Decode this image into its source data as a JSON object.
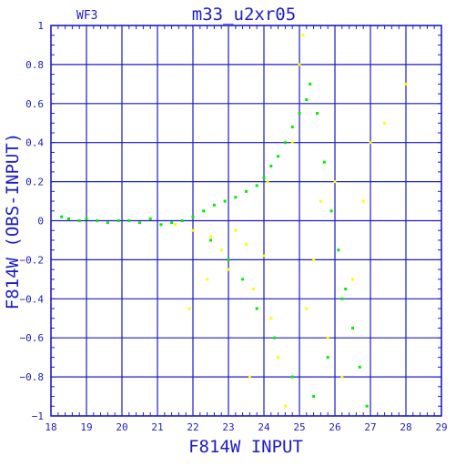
{
  "chart_data": {
    "type": "scatter",
    "title": "m33_u2xr05",
    "corner_label": "WF3",
    "xlabel": "F814W INPUT",
    "ylabel": "F814W (OBS-INPUT)",
    "xlim": [
      18,
      29
    ],
    "ylim": [
      -1,
      1
    ],
    "x_ticks": [
      18,
      19,
      20,
      21,
      22,
      23,
      24,
      25,
      26,
      27,
      28,
      29
    ],
    "y_ticks": [
      -1,
      -0.8,
      -0.6,
      -0.4,
      -0.2,
      0,
      0.2,
      0.4,
      0.6,
      0.8,
      1
    ],
    "y_tick_labels": [
      "−1",
      "−0.8",
      "−0.6",
      "−0.4",
      "−0.2",
      "0",
      "0.2",
      "0.4",
      "0.6",
      "0.8",
      "1"
    ],
    "grid": true,
    "series": [
      {
        "color": "#00ee00",
        "marker": "dot",
        "points": [
          [
            18.3,
            0.02
          ],
          [
            18.5,
            0.01
          ],
          [
            18.8,
            0.0
          ],
          [
            19.0,
            0.01
          ],
          [
            19.3,
            0.0
          ],
          [
            19.6,
            -0.01
          ],
          [
            19.9,
            0.0
          ],
          [
            20.2,
            0.0
          ],
          [
            20.5,
            -0.01
          ],
          [
            20.8,
            0.01
          ],
          [
            21.1,
            -0.02
          ],
          [
            21.4,
            -0.01
          ],
          [
            21.7,
            0.0
          ],
          [
            22.0,
            0.02
          ],
          [
            22.3,
            0.05
          ],
          [
            22.6,
            0.08
          ],
          [
            22.9,
            0.1
          ],
          [
            23.2,
            0.12
          ],
          [
            23.5,
            0.15
          ],
          [
            23.8,
            0.18
          ],
          [
            24.0,
            0.22
          ],
          [
            24.2,
            0.28
          ],
          [
            24.4,
            0.33
          ],
          [
            24.6,
            0.4
          ],
          [
            24.8,
            0.48
          ],
          [
            25.0,
            0.55
          ],
          [
            25.2,
            0.62
          ],
          [
            25.3,
            0.7
          ],
          [
            25.5,
            0.55
          ],
          [
            25.7,
            0.3
          ],
          [
            25.9,
            0.05
          ],
          [
            26.1,
            -0.15
          ],
          [
            26.3,
            -0.35
          ],
          [
            26.5,
            -0.55
          ],
          [
            26.7,
            -0.75
          ],
          [
            26.9,
            -0.95
          ],
          [
            22.5,
            -0.1
          ],
          [
            23.0,
            -0.2
          ],
          [
            23.4,
            -0.3
          ],
          [
            23.8,
            -0.45
          ],
          [
            24.3,
            -0.6
          ],
          [
            24.8,
            -0.8
          ],
          [
            25.4,
            -0.9
          ],
          [
            25.8,
            -0.7
          ],
          [
            26.2,
            -0.4
          ]
        ]
      },
      {
        "color": "#ffff00",
        "marker": "dot",
        "points": [
          [
            21.5,
            -0.02
          ],
          [
            22.0,
            -0.05
          ],
          [
            22.5,
            -0.08
          ],
          [
            22.8,
            -0.15
          ],
          [
            23.0,
            -0.25
          ],
          [
            23.2,
            -0.05
          ],
          [
            23.5,
            -0.12
          ],
          [
            23.7,
            -0.35
          ],
          [
            24.0,
            -0.18
          ],
          [
            24.2,
            -0.5
          ],
          [
            24.4,
            -0.7
          ],
          [
            24.6,
            -0.95
          ],
          [
            24.8,
            0.4
          ],
          [
            25.0,
            0.8
          ],
          [
            25.2,
            -0.45
          ],
          [
            25.4,
            -0.2
          ],
          [
            25.6,
            0.1
          ],
          [
            25.8,
            -0.6
          ],
          [
            26.0,
            0.2
          ],
          [
            26.2,
            -0.8
          ],
          [
            26.5,
            -0.3
          ],
          [
            27.0,
            0.4
          ],
          [
            27.4,
            0.5
          ],
          [
            28.0,
            0.7
          ],
          [
            25.1,
            0.95
          ],
          [
            24.1,
            0.2
          ],
          [
            23.6,
            -0.8
          ],
          [
            22.4,
            -0.3
          ],
          [
            21.9,
            -0.45
          ],
          [
            26.8,
            0.1
          ]
        ]
      }
    ]
  }
}
